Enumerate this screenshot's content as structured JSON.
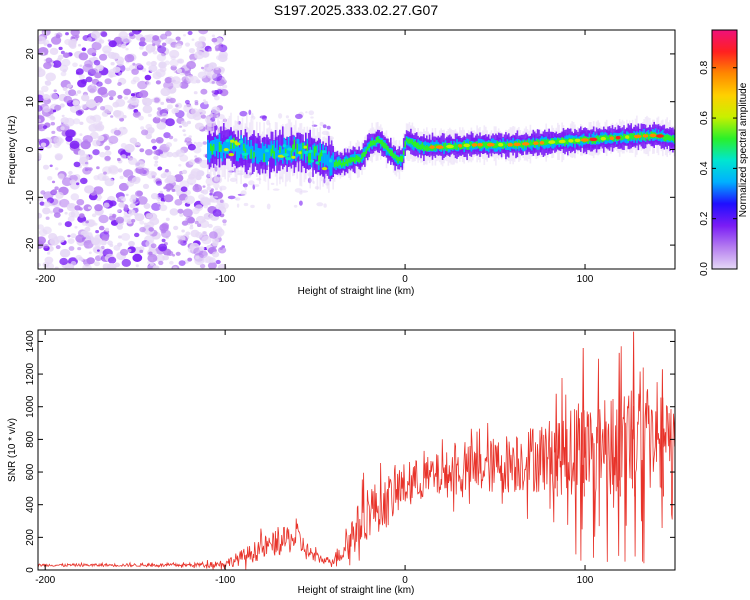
{
  "title": "S197.2025.333.02.27.G07",
  "chart_data": [
    {
      "type": "heatmap",
      "title": "S197.2025.333.02.27.G07",
      "xlabel": "Height of straight line (km)",
      "ylabel": "Frequency (Hz)",
      "xlim": [
        -204,
        150
      ],
      "ylim": [
        -25,
        25
      ],
      "xticks": [
        -200,
        -100,
        0,
        100
      ],
      "yticks": [
        -20,
        -10,
        0,
        10,
        20
      ],
      "colorbar": {
        "label": "Normalized spectral amplitude",
        "range": [
          0,
          0.95
        ],
        "ticks": [
          0.0,
          0.2,
          0.4,
          0.6,
          0.8
        ],
        "colors": [
          "#e6d8f6",
          "#b57df0",
          "#7a1cf5",
          "#1f0fff",
          "#00b0ff",
          "#00e6d0",
          "#2af02a",
          "#c8f000",
          "#ffd000",
          "#ff8800",
          "#ff2020",
          "#f0107a"
        ]
      },
      "ridge": {
        "x": [
          -110,
          -100,
          -90,
          -80,
          -70,
          -60,
          -50,
          -40,
          -35,
          -30,
          -25,
          -20,
          -15,
          -10,
          -5,
          -2,
          0,
          5,
          10,
          20,
          40,
          60,
          80,
          100,
          120,
          140,
          150
        ],
        "freq": [
          0.5,
          0.5,
          0,
          -1,
          -0.5,
          0,
          -1,
          -3,
          -3,
          -2,
          -2,
          1,
          2,
          0,
          -2,
          -2,
          2,
          1,
          0.5,
          0.5,
          1,
          1,
          1.5,
          2,
          2.5,
          3,
          2
        ]
      },
      "noise_region": [
        -204,
        -110
      ]
    },
    {
      "type": "line",
      "xlabel": "Height of straight line (km)",
      "ylabel": "SNR (10 * v/v)",
      "xlim": [
        -204,
        150
      ],
      "ylim": [
        0,
        1470
      ],
      "xticks": [
        -200,
        -100,
        0,
        100
      ],
      "yticks": [
        0,
        200,
        400,
        600,
        800,
        1000,
        1200,
        1400
      ],
      "color": "#e8332a",
      "envelope": {
        "x": [
          -204,
          -120,
          -100,
          -90,
          -80,
          -70,
          -60,
          -55,
          -50,
          -45,
          -40,
          -35,
          -30,
          -25,
          -20,
          -15,
          -10,
          0,
          10,
          20,
          40,
          60,
          80,
          90,
          100,
          110,
          120,
          130,
          140,
          150
        ],
        "base": [
          30,
          30,
          40,
          80,
          130,
          170,
          200,
          120,
          80,
          60,
          60,
          120,
          200,
          280,
          380,
          380,
          420,
          520,
          560,
          580,
          620,
          660,
          700,
          720,
          740,
          780,
          800,
          820,
          780,
          750
        ],
        "amp": [
          8,
          10,
          25,
          50,
          70,
          80,
          90,
          60,
          40,
          20,
          25,
          80,
          120,
          150,
          180,
          150,
          160,
          140,
          130,
          140,
          160,
          190,
          230,
          270,
          300,
          320,
          330,
          330,
          300,
          280
        ]
      },
      "peaks": [
        {
          "x": 127,
          "y": 1460
        },
        {
          "x": 99,
          "y": 1360
        },
        {
          "x": 119,
          "y": 1330
        },
        {
          "x": 84,
          "y": 1080
        },
        {
          "x": 143,
          "y": 1230
        }
      ]
    }
  ]
}
